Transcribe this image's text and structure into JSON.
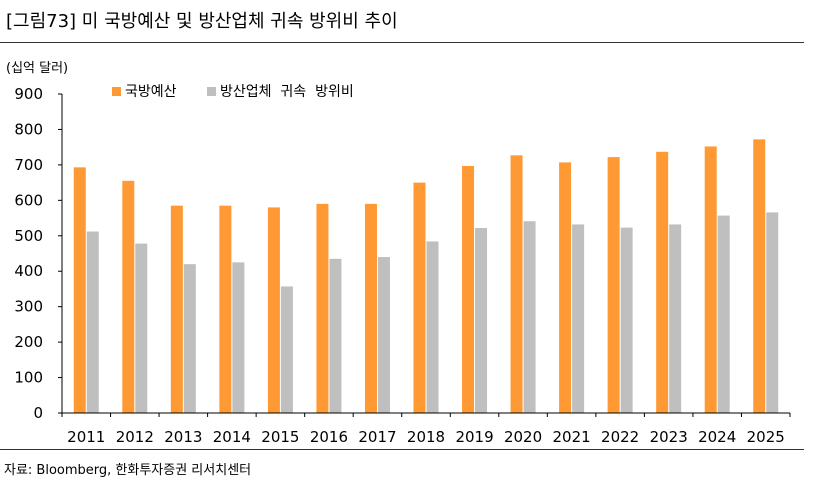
{
  "figure": {
    "title": "[그림73]  미 국방예산 및 방산업체 귀속 방위비 추이",
    "source": "자료: Bloomberg, 한화투자증권 리서치센터"
  },
  "chart_data": {
    "type": "bar",
    "title": "미 국방예산 및 방산업체 귀속 방위비 추이",
    "unit_label": "(십억  달러)",
    "xlabel": "",
    "ylabel": "(십억  달러)",
    "ylim": [
      0,
      900
    ],
    "yticks": [
      0,
      100,
      200,
      300,
      400,
      500,
      600,
      700,
      800,
      900
    ],
    "grid": false,
    "legend_position": "top",
    "categories": [
      "2011",
      "2012",
      "2013",
      "2014",
      "2015",
      "2016",
      "2017",
      "2018",
      "2019",
      "2020",
      "2021",
      "2022",
      "2023",
      "2024",
      "2025"
    ],
    "series": [
      {
        "name": "국방예산",
        "color": "#FF9933",
        "values": [
          693,
          655,
          585,
          585,
          580,
          590,
          590,
          650,
          697,
          727,
          707,
          722,
          737,
          752,
          772
        ]
      },
      {
        "name": "방산업체  귀속  방위비",
        "color": "#BFBFBF",
        "values": [
          512,
          478,
          420,
          425,
          357,
          435,
          440,
          484,
          522,
          541,
          532,
          523,
          532,
          557,
          566
        ]
      }
    ]
  }
}
